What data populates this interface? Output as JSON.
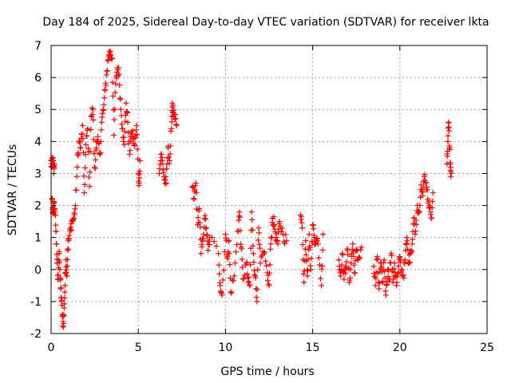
{
  "chart_data": {
    "type": "scatter",
    "title": "Day 184 of 2025, Sidereal Day-to-day VTEC variation (SDTVAR) for receiver lkta",
    "xlabel": "GPS time / hours",
    "ylabel": "SDTVAR / TECUs",
    "xlim": [
      0,
      25
    ],
    "ylim": [
      -2,
      7
    ],
    "grid": true,
    "marker": "plus",
    "marker_color": "#ff0000",
    "x_ticks": [
      0,
      5,
      10,
      15,
      20,
      25
    ],
    "y_ticks": [
      -2,
      -1,
      0,
      1,
      2,
      3,
      4,
      5,
      6,
      7
    ],
    "x_tick_labels": [
      "0",
      "5",
      "10",
      "15",
      "20",
      "25"
    ],
    "y_tick_labels": [
      "-2",
      "-1",
      "0",
      "1",
      "2",
      "3",
      "4",
      "5",
      "6",
      "7"
    ],
    "series": [
      {
        "name": "SDTVAR",
        "trace": [
          [
            0.0,
            3.4
          ],
          [
            0.05,
            3.2
          ],
          [
            0.1,
            3.5
          ],
          [
            0.15,
            3.0
          ],
          [
            0.2,
            3.3
          ],
          [
            0.05,
            2.2
          ],
          [
            0.1,
            1.8
          ],
          [
            0.15,
            2.0
          ],
          [
            0.2,
            1.9
          ],
          [
            0.25,
            1.7
          ],
          [
            0.3,
            0.8
          ],
          [
            0.35,
            0.2
          ],
          [
            0.4,
            -0.3
          ],
          [
            0.45,
            0.5
          ],
          [
            0.5,
            0.0
          ],
          [
            0.55,
            -0.6
          ],
          [
            0.6,
            -1.0
          ],
          [
            0.65,
            -1.4
          ],
          [
            0.7,
            -1.8
          ],
          [
            0.75,
            -1.2
          ],
          [
            0.8,
            -0.5
          ],
          [
            0.85,
            0.3
          ],
          [
            0.9,
            -0.2
          ],
          [
            0.95,
            0.6
          ],
          [
            1.0,
            0.9
          ],
          [
            1.1,
            1.2
          ],
          [
            1.2,
            1.5
          ],
          [
            1.3,
            1.6
          ],
          [
            1.4,
            2.0
          ],
          [
            1.5,
            3.2
          ],
          [
            1.6,
            4.0
          ],
          [
            1.7,
            3.8
          ],
          [
            1.8,
            4.5
          ],
          [
            1.9,
            2.4
          ],
          [
            2.0,
            3.9
          ],
          [
            2.1,
            4.4
          ],
          [
            2.2,
            2.6
          ],
          [
            2.3,
            4.8
          ],
          [
            2.4,
            5.0
          ],
          [
            2.5,
            3.2
          ],
          [
            2.6,
            3.8
          ],
          [
            2.7,
            4.0
          ],
          [
            2.8,
            3.6
          ],
          [
            2.9,
            4.6
          ],
          [
            3.0,
            5.0
          ],
          [
            3.1,
            5.6
          ],
          [
            3.2,
            6.2
          ],
          [
            3.3,
            6.7
          ],
          [
            3.4,
            6.8
          ],
          [
            3.5,
            6.6
          ],
          [
            3.6,
            4.2
          ],
          [
            3.7,
            5.8
          ],
          [
            3.8,
            6.3
          ],
          [
            3.9,
            6.1
          ],
          [
            4.0,
            5.0
          ],
          [
            4.1,
            4.4
          ],
          [
            4.2,
            3.9
          ],
          [
            4.3,
            5.2
          ],
          [
            4.4,
            4.6
          ],
          [
            4.5,
            3.6
          ],
          [
            4.6,
            4.3
          ],
          [
            4.7,
            4.1
          ],
          [
            4.8,
            3.9
          ],
          [
            4.9,
            4.5
          ],
          [
            5.0,
            3.0
          ],
          [
            5.05,
            2.7
          ],
          [
            5.1,
            3.4
          ],
          [
            6.2,
            3.0
          ],
          [
            6.3,
            3.6
          ],
          [
            6.4,
            3.3
          ],
          [
            6.5,
            2.8
          ],
          [
            6.6,
            2.7
          ],
          [
            6.7,
            3.8
          ],
          [
            6.8,
            3.4
          ],
          [
            6.9,
            4.4
          ],
          [
            6.95,
            5.2
          ],
          [
            7.0,
            4.9
          ],
          [
            7.1,
            4.7
          ],
          [
            7.2,
            4.5
          ],
          [
            8.1,
            2.6
          ],
          [
            8.2,
            2.2
          ],
          [
            8.3,
            2.7
          ],
          [
            8.4,
            1.4
          ],
          [
            8.5,
            1.9
          ],
          [
            8.6,
            0.5
          ],
          [
            8.7,
            0.9
          ],
          [
            8.8,
            1.6
          ],
          [
            8.9,
            1.3
          ],
          [
            9.0,
            0.6
          ],
          [
            9.1,
            1.0
          ],
          [
            9.6,
            0.5
          ],
          [
            9.7,
            -0.5
          ],
          [
            9.8,
            -0.8
          ],
          [
            10.0,
            1.1
          ],
          [
            10.1,
            0.4
          ],
          [
            10.2,
            0.9
          ],
          [
            10.3,
            -0.7
          ],
          [
            10.5,
            -0.2
          ],
          [
            10.7,
            1.2
          ],
          [
            10.8,
            1.8
          ],
          [
            10.9,
            0.7
          ],
          [
            11.0,
            -0.3
          ],
          [
            11.2,
            0.2
          ],
          [
            11.3,
            -0.4
          ],
          [
            11.4,
            -0.5
          ],
          [
            11.5,
            1.8
          ],
          [
            11.6,
            0.5
          ],
          [
            11.7,
            -0.2
          ],
          [
            11.8,
            -1.0
          ],
          [
            11.9,
            1.3
          ],
          [
            12.0,
            0.2
          ],
          [
            12.2,
            0.5
          ],
          [
            12.4,
            -0.1
          ],
          [
            12.5,
            -0.5
          ],
          [
            12.6,
            0.8
          ],
          [
            12.7,
            1.6
          ],
          [
            12.8,
            1.4
          ],
          [
            12.9,
            1.0
          ],
          [
            13.0,
            0.8
          ],
          [
            13.1,
            1.5
          ],
          [
            13.3,
            1.1
          ],
          [
            13.5,
            0.9
          ],
          [
            14.3,
            1.7
          ],
          [
            14.4,
            1.3
          ],
          [
            14.5,
            -0.4
          ],
          [
            14.6,
            0.9
          ],
          [
            14.7,
            -0.2
          ],
          [
            14.8,
            1.1
          ],
          [
            14.9,
            0.0
          ],
          [
            15.0,
            1.4
          ],
          [
            15.1,
            1.0
          ],
          [
            15.2,
            0.9
          ],
          [
            15.3,
            0.8
          ],
          [
            15.5,
            -0.5
          ],
          [
            15.6,
            1.1
          ],
          [
            16.5,
            0.3
          ],
          [
            16.6,
            -0.2
          ],
          [
            16.7,
            0.5
          ],
          [
            16.8,
            -0.3
          ],
          [
            16.9,
            0.1
          ],
          [
            17.0,
            0.6
          ],
          [
            17.1,
            -0.4
          ],
          [
            17.2,
            0.2
          ],
          [
            17.3,
            0.8
          ],
          [
            17.4,
            -0.1
          ],
          [
            17.5,
            0.6
          ],
          [
            17.6,
            0.3
          ],
          [
            17.8,
            0.7
          ],
          [
            18.5,
            0.1
          ],
          [
            18.6,
            -0.5
          ],
          [
            18.7,
            0.4
          ],
          [
            18.8,
            -0.6
          ],
          [
            18.9,
            0.2
          ],
          [
            19.0,
            -0.4
          ],
          [
            19.1,
            0.3
          ],
          [
            19.2,
            -0.8
          ],
          [
            19.3,
            0.0
          ],
          [
            19.4,
            -0.3
          ],
          [
            19.5,
            0.5
          ],
          [
            19.6,
            -0.4
          ],
          [
            19.7,
            0.2
          ],
          [
            19.8,
            -0.5
          ],
          [
            19.9,
            -0.1
          ],
          [
            20.0,
            0.4
          ],
          [
            20.1,
            0.0
          ],
          [
            20.2,
            -0.2
          ],
          [
            20.3,
            0.3
          ],
          [
            20.4,
            1.0
          ],
          [
            20.5,
            0.2
          ],
          [
            20.6,
            0.5
          ],
          [
            20.7,
            0.8
          ],
          [
            20.8,
            1.6
          ],
          [
            20.9,
            1.2
          ],
          [
            21.0,
            2.0
          ],
          [
            21.1,
            1.8
          ],
          [
            21.2,
            2.5
          ],
          [
            21.3,
            2.3
          ],
          [
            21.4,
            2.9
          ],
          [
            21.5,
            2.7
          ],
          [
            21.6,
            2.2
          ],
          [
            21.7,
            2.0
          ],
          [
            21.8,
            1.6
          ],
          [
            21.9,
            2.4
          ],
          [
            22.7,
            3.3
          ],
          [
            22.75,
            4.0
          ],
          [
            22.8,
            4.6
          ],
          [
            22.85,
            3.8
          ],
          [
            22.9,
            3.1
          ],
          [
            22.95,
            3.0
          ]
        ]
      }
    ]
  }
}
